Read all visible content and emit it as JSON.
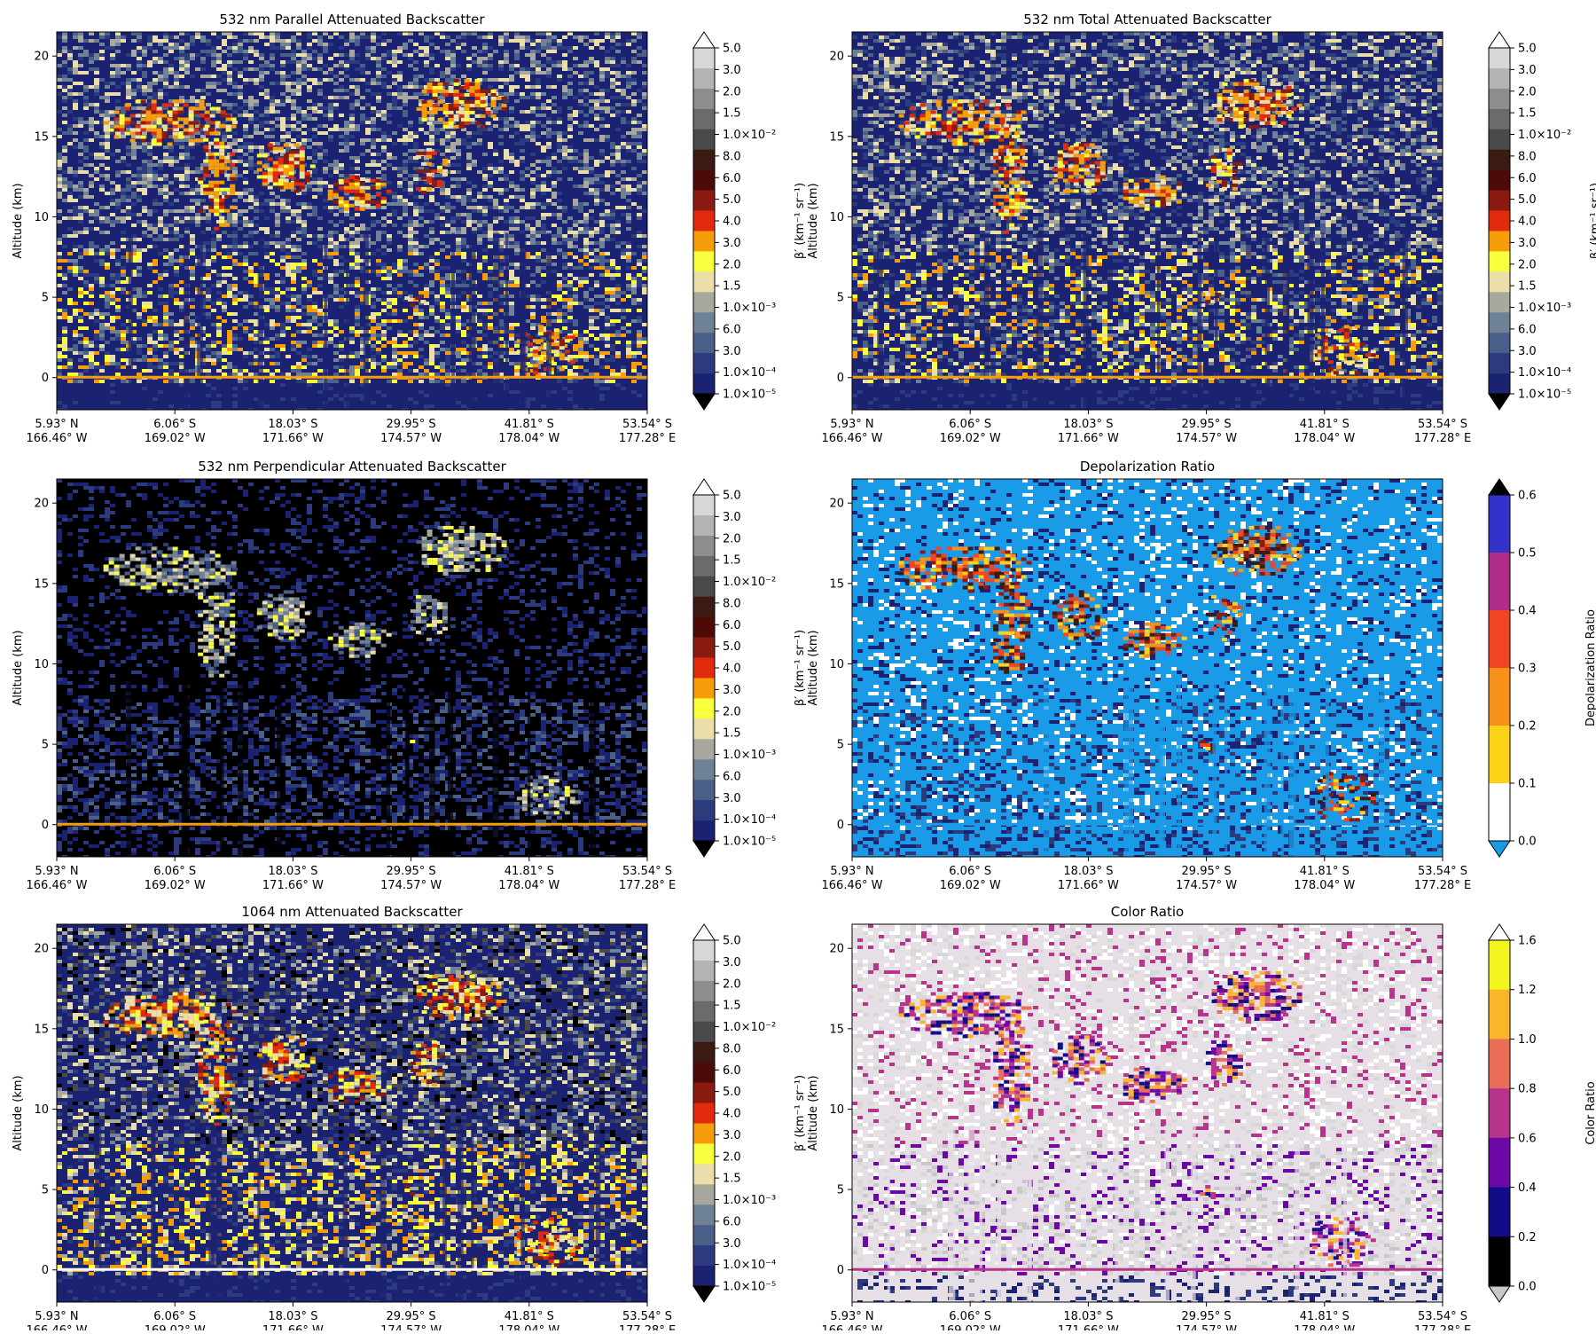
{
  "figure": {
    "altitude_label": "Altitude (km)",
    "y_ticks": [
      "0",
      "5",
      "10",
      "15",
      "20"
    ],
    "y_tick_values": [
      0,
      5,
      10,
      15,
      20
    ],
    "ylim": [
      -2,
      21.5
    ],
    "x_ticks": [
      {
        "lat": "5.93° N",
        "lon": "166.46° W"
      },
      {
        "lat": "6.06° S",
        "lon": "169.02° W"
      },
      {
        "lat": "18.03° S",
        "lon": "171.66° W"
      },
      {
        "lat": "29.95° S",
        "lon": "174.57° W"
      },
      {
        "lat": "41.81° S",
        "lon": "178.04° W"
      },
      {
        "lat": "53.54° S",
        "lon": "177.28° E"
      }
    ]
  },
  "backscatter_colorbar": {
    "label": "β′ (km⁻¹ sr⁻¹)",
    "ticks": [
      "5.0",
      "3.0",
      "2.0",
      "1.5",
      "1.0×10⁻²",
      "8.0",
      "6.0",
      "5.0",
      "4.0",
      "3.0",
      "2.0",
      "1.5",
      "1.0×10⁻³",
      "6.0",
      "3.0",
      "1.0×10⁻⁴",
      "1.0×10⁻⁵"
    ],
    "colors": [
      "#d8d8d8",
      "#b4b4b4",
      "#8e8e8e",
      "#6b6b6b",
      "#4a4a4a",
      "#3b1a14",
      "#4c0b07",
      "#8b1a10",
      "#e32a0c",
      "#f79d0a",
      "#f8ff3c",
      "#eadeaa",
      "#a8a89e",
      "#6e8196",
      "#4a6089",
      "#2c3a7e",
      "#1c2272"
    ],
    "over_color": "#ffffff",
    "under_color": "#000000"
  },
  "depol_colorbar": {
    "label": "Depolarization Ratio",
    "ticks": [
      "0.6",
      "0.5",
      "0.4",
      "0.3",
      "0.2",
      "0.1",
      "0.0"
    ],
    "colors": [
      "#3333cc",
      "#b22d89",
      "#f14626",
      "#f7911a",
      "#ffd21a",
      "#ffffff"
    ],
    "over_color": "#000000",
    "under_color": "#1a9be8"
  },
  "color_colorbar": {
    "label": "Color Ratio",
    "ticks": [
      "1.6",
      "1.2",
      "1.0",
      "0.8",
      "0.6",
      "0.4",
      "0.2",
      "0.0"
    ],
    "colors": [
      "#f4f41f",
      "#fbb52a",
      "#ea6e57",
      "#b8338c",
      "#6d07a7",
      "#120c88",
      "#000000"
    ],
    "over_color": "#ffffff",
    "under_color": "#c8c8c8"
  },
  "panels": [
    {
      "title": "532 nm Parallel Attenuated Backscatter",
      "kind": "backscatter"
    },
    {
      "title": "532 nm Total Attenuated Backscatter",
      "kind": "backscatter"
    },
    {
      "title": "532 nm Perpendicular Attenuated Backscatter",
      "kind": "perp"
    },
    {
      "title": "Depolarization Ratio",
      "kind": "depol"
    },
    {
      "title": "1064 nm Attenuated Backscatter",
      "kind": "b1064"
    },
    {
      "title": "Color Ratio",
      "kind": "color"
    }
  ],
  "chart_data": [
    {
      "type": "heatmap",
      "title": "532 nm Parallel Attenuated Backscatter",
      "ylabel": "Altitude (km)",
      "ylim": [
        -2,
        21.5
      ],
      "colorbar_label": "β′ (km⁻¹ sr⁻¹)",
      "colorbar_range": [
        1e-05,
        0.05
      ]
    },
    {
      "type": "heatmap",
      "title": "532 nm Total Attenuated Backscatter",
      "ylabel": "Altitude (km)",
      "ylim": [
        -2,
        21.5
      ],
      "colorbar_label": "β′ (km⁻¹ sr⁻¹)",
      "colorbar_range": [
        1e-05,
        0.05
      ]
    },
    {
      "type": "heatmap",
      "title": "532 nm Perpendicular Attenuated Backscatter",
      "ylabel": "Altitude (km)",
      "ylim": [
        -2,
        21.5
      ],
      "colorbar_label": "β′ (km⁻¹ sr⁻¹)",
      "colorbar_range": [
        1e-05,
        0.05
      ]
    },
    {
      "type": "heatmap",
      "title": "Depolarization Ratio",
      "ylabel": "Altitude (km)",
      "ylim": [
        -2,
        21.5
      ],
      "colorbar_label": "Depolarization Ratio",
      "colorbar_range": [
        0.0,
        0.6
      ]
    },
    {
      "type": "heatmap",
      "title": "1064 nm Attenuated Backscatter",
      "ylabel": "Altitude (km)",
      "ylim": [
        -2,
        21.5
      ],
      "colorbar_label": "β′ (km⁻¹ sr⁻¹)",
      "colorbar_range": [
        1e-05,
        0.05
      ]
    },
    {
      "type": "heatmap",
      "title": "Color Ratio",
      "ylabel": "Altitude (km)",
      "ylim": [
        -2,
        21.5
      ],
      "colorbar_label": "Color Ratio",
      "colorbar_range": [
        0.0,
        1.6
      ]
    }
  ]
}
